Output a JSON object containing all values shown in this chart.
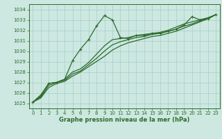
{
  "title": "Graphe pression niveau de la mer (hPa)",
  "bg_color": "#cce8e0",
  "grid_color": "#aacccc",
  "line_color": "#2d6a2d",
  "xlim": [
    -0.5,
    23.5
  ],
  "ylim": [
    1024.5,
    1034.5
  ],
  "xticks": [
    0,
    1,
    2,
    3,
    4,
    5,
    6,
    7,
    8,
    9,
    10,
    11,
    12,
    13,
    14,
    15,
    16,
    17,
    18,
    19,
    20,
    21,
    22,
    23
  ],
  "yticks": [
    1025,
    1026,
    1027,
    1028,
    1029,
    1030,
    1031,
    1032,
    1033,
    1034
  ],
  "series": [
    {
      "x": [
        0,
        1,
        2,
        3,
        4,
        5,
        6,
        7,
        8,
        9,
        10,
        11,
        12,
        13,
        14,
        15,
        16,
        17,
        18,
        19,
        20,
        21,
        22,
        23
      ],
      "y": [
        1025.1,
        1025.8,
        1026.9,
        1027.0,
        1027.3,
        1029.1,
        1030.2,
        1031.1,
        1032.4,
        1033.4,
        1033.0,
        1031.3,
        1031.2,
        1031.5,
        1031.5,
        1031.7,
        1031.7,
        1031.9,
        1032.1,
        1032.5,
        1033.3,
        1033.0,
        1033.1,
        1033.5
      ],
      "markers": true
    },
    {
      "x": [
        0,
        1,
        2,
        3,
        4,
        5,
        6,
        7,
        8,
        9,
        10,
        11,
        12,
        13,
        14,
        15,
        16,
        17,
        18,
        19,
        20,
        21,
        22,
        23
      ],
      "y": [
        1025.1,
        1025.5,
        1026.5,
        1026.9,
        1027.1,
        1027.6,
        1028.0,
        1028.5,
        1029.0,
        1029.5,
        1030.1,
        1030.5,
        1030.8,
        1031.0,
        1031.2,
        1031.4,
        1031.5,
        1031.7,
        1031.9,
        1032.2,
        1032.5,
        1032.8,
        1033.1,
        1033.5
      ],
      "markers": false
    },
    {
      "x": [
        0,
        1,
        2,
        3,
        4,
        5,
        6,
        7,
        8,
        9,
        10,
        11,
        12,
        13,
        14,
        15,
        16,
        17,
        18,
        19,
        20,
        21,
        22,
        23
      ],
      "y": [
        1025.1,
        1025.6,
        1026.7,
        1027.0,
        1027.2,
        1027.8,
        1028.1,
        1028.7,
        1029.3,
        1030.0,
        1030.6,
        1030.9,
        1031.1,
        1031.3,
        1031.4,
        1031.6,
        1031.7,
        1031.9,
        1032.1,
        1032.4,
        1032.6,
        1032.9,
        1033.1,
        1033.5
      ],
      "markers": false
    },
    {
      "x": [
        0,
        1,
        2,
        3,
        4,
        5,
        6,
        7,
        8,
        9,
        10,
        11,
        12,
        13,
        14,
        15,
        16,
        17,
        18,
        19,
        20,
        21,
        22,
        23
      ],
      "y": [
        1025.1,
        1025.7,
        1026.9,
        1027.0,
        1027.3,
        1028.0,
        1028.3,
        1028.9,
        1029.7,
        1030.5,
        1031.1,
        1031.2,
        1031.3,
        1031.5,
        1031.6,
        1031.7,
        1031.8,
        1032.0,
        1032.3,
        1032.6,
        1032.8,
        1033.0,
        1033.2,
        1033.5
      ],
      "markers": false
    }
  ],
  "xlabel_fontsize": 6,
  "tick_fontsize": 5,
  "linewidth": 0.9,
  "markersize": 3.5
}
